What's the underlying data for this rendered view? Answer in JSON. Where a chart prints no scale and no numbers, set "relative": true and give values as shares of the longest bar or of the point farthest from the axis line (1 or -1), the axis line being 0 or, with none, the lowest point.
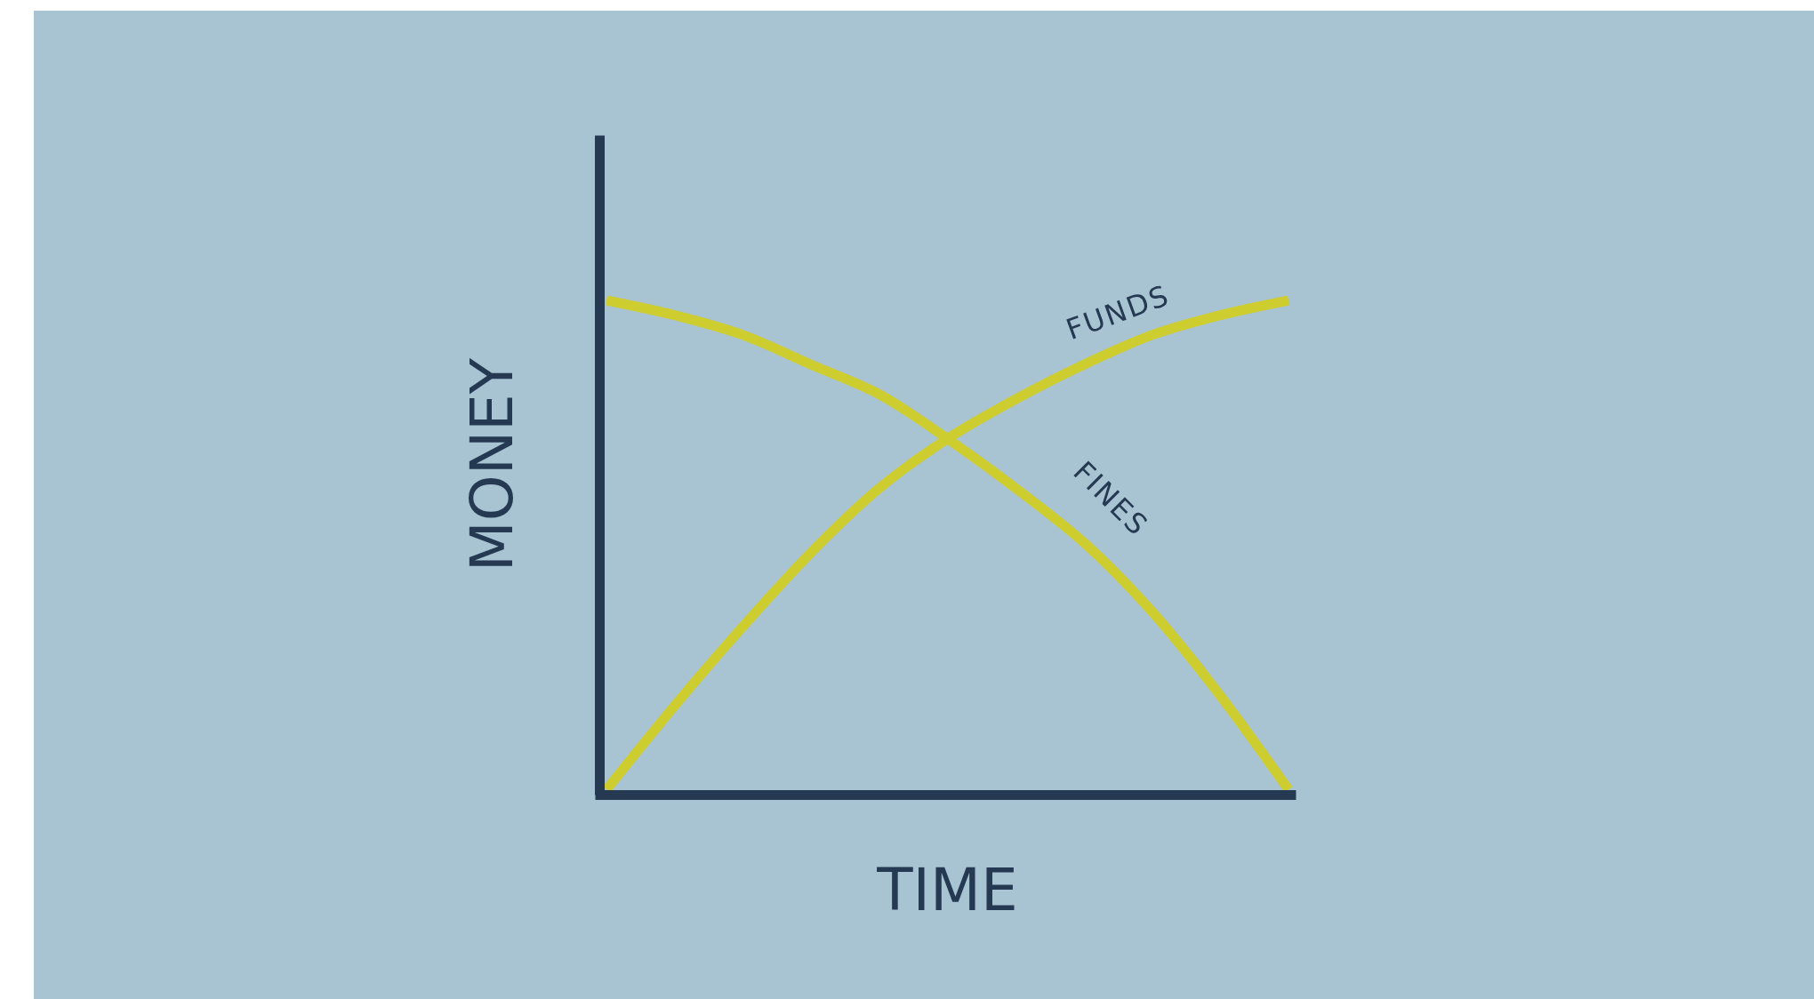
{
  "chart_data": {
    "type": "line",
    "relative": true,
    "xlabel": "TIME",
    "ylabel": "MONEY",
    "legend": false,
    "categories": [
      null,
      null,
      null,
      null,
      null,
      null,
      null,
      null,
      null,
      null,
      null
    ],
    "series": [
      {
        "name": "FUNDS",
        "color": "#cdcd30",
        "values": [
          0.01,
          0.18,
          0.34,
          0.49,
          0.62,
          0.72,
          0.8,
          0.87,
          0.93,
          0.97,
          1.0
        ]
      },
      {
        "name": "FINES",
        "color": "#cdcd30",
        "values": [
          1.0,
          0.97,
          0.93,
          0.87,
          0.81,
          0.72,
          0.62,
          0.51,
          0.37,
          0.2,
          0.01
        ]
      }
    ]
  }
}
